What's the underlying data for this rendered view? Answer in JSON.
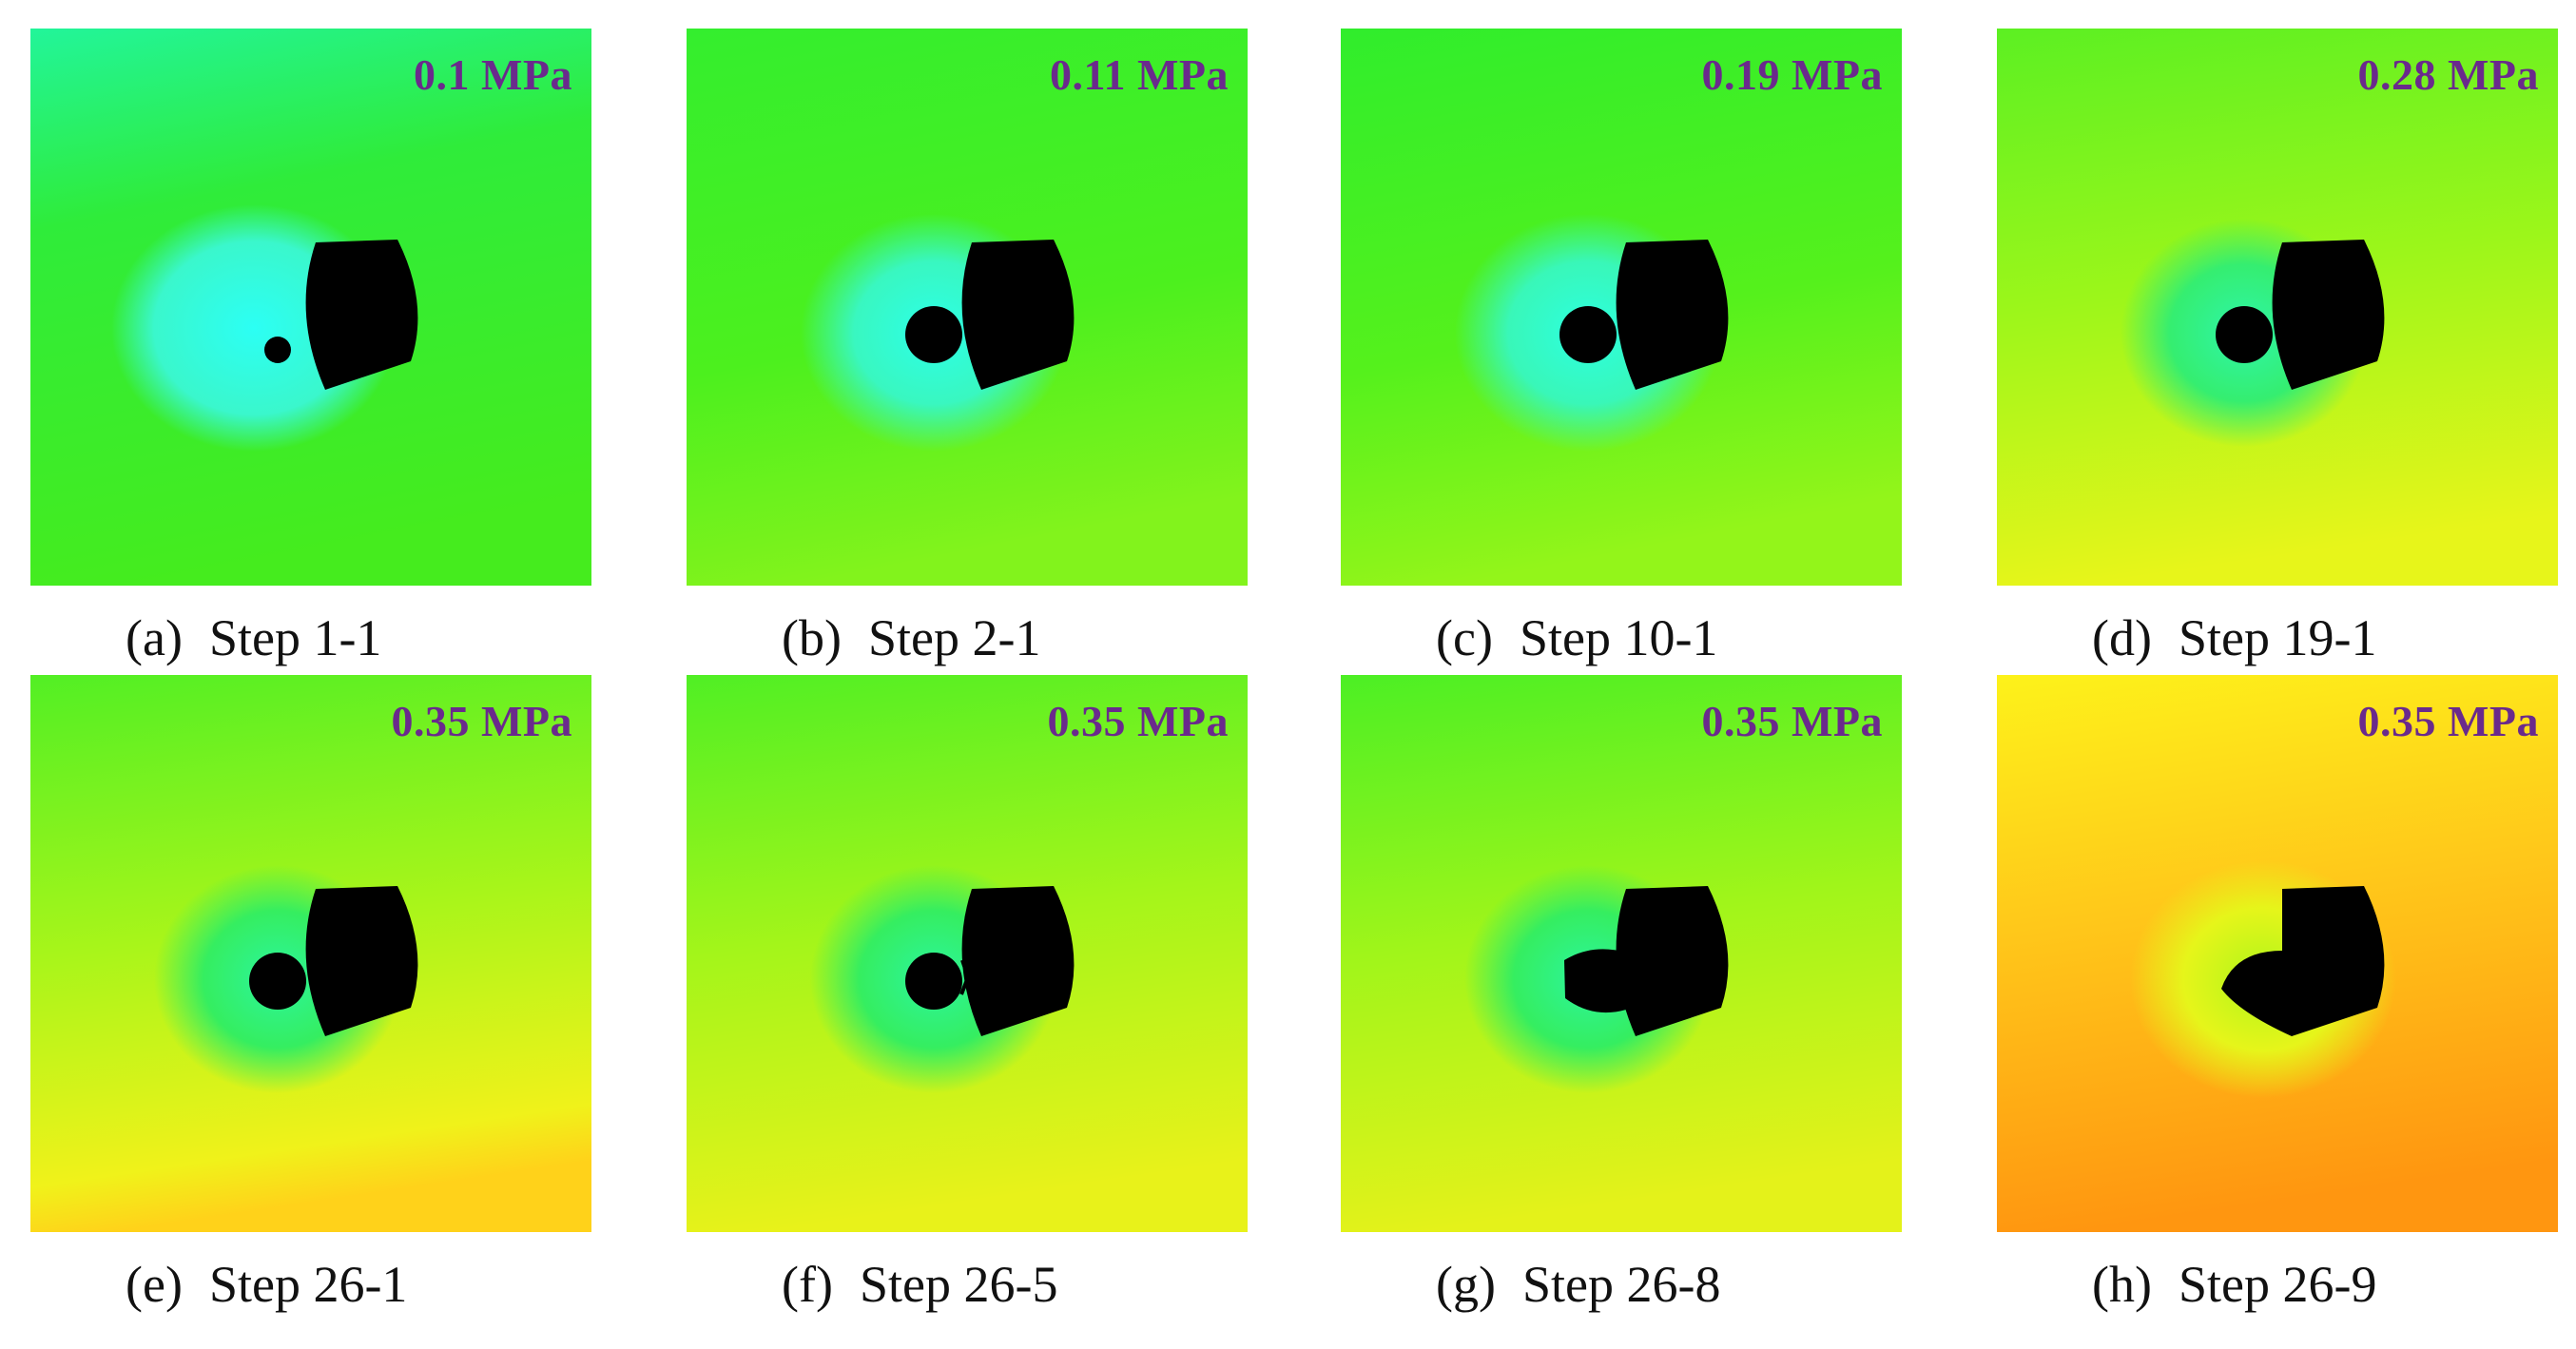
{
  "panels": [
    {
      "label": "(a)",
      "step": "Step 1-1",
      "pressure": "0.1 MPa"
    },
    {
      "label": "(b)",
      "step": "Step 2-1",
      "pressure": "0.11 MPa"
    },
    {
      "label": "(c)",
      "step": "Step 10-1",
      "pressure": "0.19 MPa"
    },
    {
      "label": "(d)",
      "step": "Step 19-1",
      "pressure": "0.28 MPa"
    },
    {
      "label": "(e)",
      "step": "Step 26-1",
      "pressure": "0.35 MPa"
    },
    {
      "label": "(f)",
      "step": "Step 26-5",
      "pressure": "0.35 MPa"
    },
    {
      "label": "(g)",
      "step": "Step 26-8",
      "pressure": "0.35 MPa"
    },
    {
      "label": "(h)",
      "step": "Step 26-9",
      "pressure": "0.35 MPa"
    }
  ],
  "colors": {
    "pressure_text": "#6a2a8c",
    "field_green": "#33ee22",
    "field_yellow": "#e6ff1a",
    "field_orange": "#ff9900",
    "cavity": "#000000",
    "low_stress_cyan": "#33ffdd"
  }
}
